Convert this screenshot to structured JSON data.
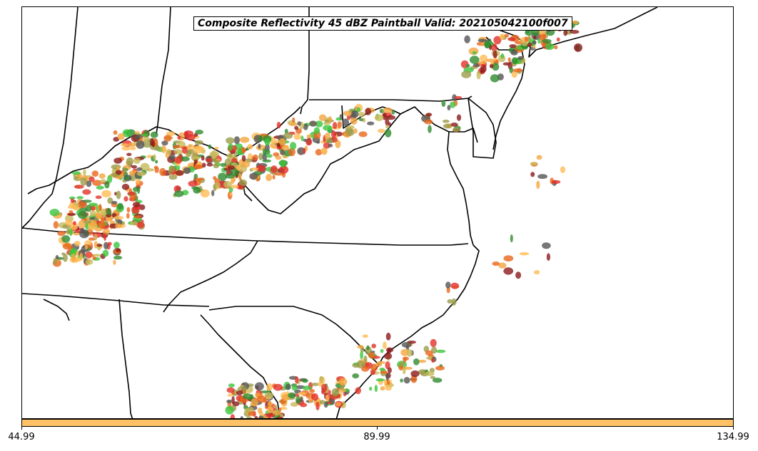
{
  "title": "Composite Reflectivity 45 dBZ Paintball Valid: 202105042100f007",
  "colorbar": {
    "color": "#ffc266",
    "ticks": [
      "44.99",
      "89.99",
      "134.99"
    ]
  },
  "paintball_colors": [
    "#e4312b",
    "#8b1a1a",
    "#e8661a",
    "#f4a640",
    "#ffbb55",
    "#3cc43c",
    "#2e8b2e",
    "#9b9b4a",
    "#c8b95a",
    "#555555"
  ]
}
